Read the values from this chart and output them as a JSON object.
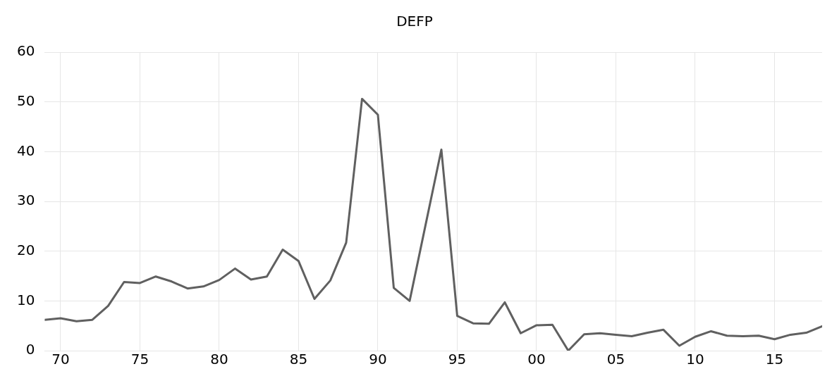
{
  "chart_data": {
    "type": "line",
    "title": "DEFP",
    "x": [
      1969,
      1970,
      1971,
      1972,
      1973,
      1974,
      1975,
      1976,
      1977,
      1978,
      1979,
      1980,
      1981,
      1982,
      1983,
      1984,
      1985,
      1986,
      1987,
      1988,
      1989,
      1990,
      1991,
      1992,
      1993,
      1994,
      1995,
      1996,
      1997,
      1998,
      1999,
      2000,
      2001,
      2002,
      2003,
      2004,
      2005,
      2006,
      2007,
      2008,
      2009,
      2010,
      2011,
      2012,
      2013,
      2014,
      2015,
      2016,
      2017,
      2018
    ],
    "series": [
      {
        "color": "#606060",
        "values": [
          6.2,
          6.5,
          5.9,
          6.2,
          9.0,
          13.8,
          13.6,
          14.9,
          13.9,
          12.5,
          12.9,
          14.2,
          16.5,
          14.3,
          14.9,
          20.3,
          18.0,
          10.4,
          14.1,
          21.7,
          50.6,
          47.4,
          12.6,
          10.0,
          25.2,
          40.4,
          7.0,
          5.5,
          5.4,
          9.7,
          3.5,
          5.1,
          5.2,
          0,
          3.3,
          3.5,
          3.2,
          2.9,
          3.6,
          4.2,
          1.0,
          2.8,
          3.9,
          3.0,
          2.9,
          3.0,
          2.3,
          3.2,
          3.6,
          4.9
        ]
      }
    ],
    "xlim": [
      1969,
      2018
    ],
    "xticks": [
      {
        "value": 1970,
        "label": "70"
      },
      {
        "value": 1975,
        "label": "75"
      },
      {
        "value": 1980,
        "label": "80"
      },
      {
        "value": 1985,
        "label": "85"
      },
      {
        "value": 1990,
        "label": "90"
      },
      {
        "value": 1995,
        "label": "95"
      },
      {
        "value": 2000,
        "label": "00"
      },
      {
        "value": 2005,
        "label": "05"
      },
      {
        "value": 2010,
        "label": "10"
      },
      {
        "value": 2015,
        "label": "15"
      }
    ],
    "ylim": [
      0,
      60
    ],
    "yticks": [
      0,
      10,
      20,
      30,
      40,
      50,
      60
    ],
    "grid": true,
    "legend": false,
    "marker": "none",
    "line_style": "solid"
  }
}
